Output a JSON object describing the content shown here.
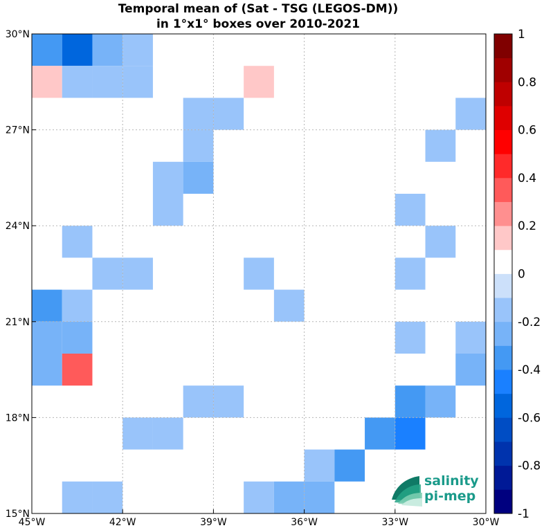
{
  "chart_data": {
    "type": "heatmap",
    "title": "Temporal mean of (Sat - TSG (LEGOS-DM))",
    "subtitle": "in 1°x1° boxes over 2010-2021",
    "xlim": [
      -45,
      -30
    ],
    "ylim": [
      15,
      30
    ],
    "x_ticks": [
      {
        "value": -45,
        "label": "45°W"
      },
      {
        "value": -42,
        "label": "42°W"
      },
      {
        "value": -39,
        "label": "39°W"
      },
      {
        "value": -36,
        "label": "36°W"
      },
      {
        "value": -33,
        "label": "33°W"
      },
      {
        "value": -30,
        "label": "30°W"
      }
    ],
    "y_ticks": [
      {
        "value": 15,
        "label": "15°N"
      },
      {
        "value": 18,
        "label": "18°N"
      },
      {
        "value": 21,
        "label": "21°N"
      },
      {
        "value": 24,
        "label": "24°N"
      },
      {
        "value": 27,
        "label": "27°N"
      },
      {
        "value": 30,
        "label": "30°N"
      }
    ],
    "grid": true,
    "cell_size_deg": 1,
    "colorbar": {
      "min": -1,
      "max": 1,
      "step": 0.1,
      "colors": [
        "#00007f",
        "#001996",
        "#0033ad",
        "#004dc4",
        "#0066dd",
        "#1a80ff",
        "#4499f3",
        "#77b3f8",
        "#99c4fa",
        "#cce0fa",
        "#ffffff",
        "#ffc8c8",
        "#ff8f8f",
        "#ff5a5a",
        "#ff2a2a",
        "#ff0000",
        "#df0000",
        "#bf0000",
        "#a00000",
        "#800000"
      ],
      "labels": [
        {
          "value": 1,
          "label": "1"
        },
        {
          "value": 0.8,
          "label": "0.8"
        },
        {
          "value": 0.6,
          "label": "0.6"
        },
        {
          "value": 0.4,
          "label": "0.4"
        },
        {
          "value": 0.2,
          "label": "0.2"
        },
        {
          "value": 0,
          "label": "0"
        },
        {
          "value": -0.2,
          "label": "-0.2"
        },
        {
          "value": -0.4,
          "label": "-0.4"
        },
        {
          "value": -0.6,
          "label": "-0.6"
        },
        {
          "value": -0.8,
          "label": "-0.8"
        },
        {
          "value": -1,
          "label": "-1"
        }
      ]
    },
    "cells": [
      {
        "lon": -45,
        "lat": 29,
        "value": -0.35
      },
      {
        "lon": -44,
        "lat": 29,
        "value": -0.55
      },
      {
        "lon": -43,
        "lat": 29,
        "value": -0.25
      },
      {
        "lon": -42,
        "lat": 29,
        "value": -0.15
      },
      {
        "lon": -45,
        "lat": 28,
        "value": 0.15
      },
      {
        "lon": -44,
        "lat": 28,
        "value": -0.15
      },
      {
        "lon": -43,
        "lat": 28,
        "value": -0.15
      },
      {
        "lon": -42,
        "lat": 28,
        "value": -0.15
      },
      {
        "lon": -38,
        "lat": 28,
        "value": 0.15
      },
      {
        "lon": -40,
        "lat": 27,
        "value": -0.15
      },
      {
        "lon": -39,
        "lat": 27,
        "value": -0.15
      },
      {
        "lon": -31,
        "lat": 27,
        "value": -0.15
      },
      {
        "lon": -40,
        "lat": 26,
        "value": -0.15
      },
      {
        "lon": -32,
        "lat": 26,
        "value": -0.15
      },
      {
        "lon": -41,
        "lat": 25,
        "value": -0.15
      },
      {
        "lon": -40,
        "lat": 25,
        "value": -0.25
      },
      {
        "lon": -41,
        "lat": 24,
        "value": -0.15
      },
      {
        "lon": -33,
        "lat": 24,
        "value": -0.15
      },
      {
        "lon": -44,
        "lat": 23,
        "value": -0.15
      },
      {
        "lon": -32,
        "lat": 23,
        "value": -0.15
      },
      {
        "lon": -43,
        "lat": 22,
        "value": -0.15
      },
      {
        "lon": -42,
        "lat": 22,
        "value": -0.15
      },
      {
        "lon": -38,
        "lat": 22,
        "value": -0.15
      },
      {
        "lon": -33,
        "lat": 22,
        "value": -0.15
      },
      {
        "lon": -45,
        "lat": 21,
        "value": -0.35
      },
      {
        "lon": -44,
        "lat": 21,
        "value": -0.15
      },
      {
        "lon": -37,
        "lat": 21,
        "value": -0.15
      },
      {
        "lon": -45,
        "lat": 20,
        "value": -0.25
      },
      {
        "lon": -44,
        "lat": 20,
        "value": -0.25
      },
      {
        "lon": -33,
        "lat": 20,
        "value": -0.15
      },
      {
        "lon": -31,
        "lat": 20,
        "value": -0.15
      },
      {
        "lon": -45,
        "lat": 19,
        "value": -0.25
      },
      {
        "lon": -44,
        "lat": 19,
        "value": 0.35
      },
      {
        "lon": -31,
        "lat": 19,
        "value": -0.25
      },
      {
        "lon": -40,
        "lat": 18,
        "value": -0.15
      },
      {
        "lon": -39,
        "lat": 18,
        "value": -0.15
      },
      {
        "lon": -33,
        "lat": 18,
        "value": -0.35
      },
      {
        "lon": -32,
        "lat": 18,
        "value": -0.25
      },
      {
        "lon": -42,
        "lat": 17,
        "value": -0.15
      },
      {
        "lon": -41,
        "lat": 17,
        "value": -0.15
      },
      {
        "lon": -34,
        "lat": 17,
        "value": -0.35
      },
      {
        "lon": -33,
        "lat": 17,
        "value": -0.45
      },
      {
        "lon": -36,
        "lat": 16,
        "value": -0.15
      },
      {
        "lon": -35,
        "lat": 16,
        "value": -0.35
      },
      {
        "lon": -44,
        "lat": 15,
        "value": -0.15
      },
      {
        "lon": -43,
        "lat": 15,
        "value": -0.15
      },
      {
        "lon": -38,
        "lat": 15,
        "value": -0.15
      },
      {
        "lon": -37,
        "lat": 15,
        "value": -0.25
      },
      {
        "lon": -36,
        "lat": 15,
        "value": -0.25
      }
    ]
  },
  "logo": {
    "line1": "salinity",
    "line2": "pi-mep",
    "color": "#1a9a8a"
  }
}
